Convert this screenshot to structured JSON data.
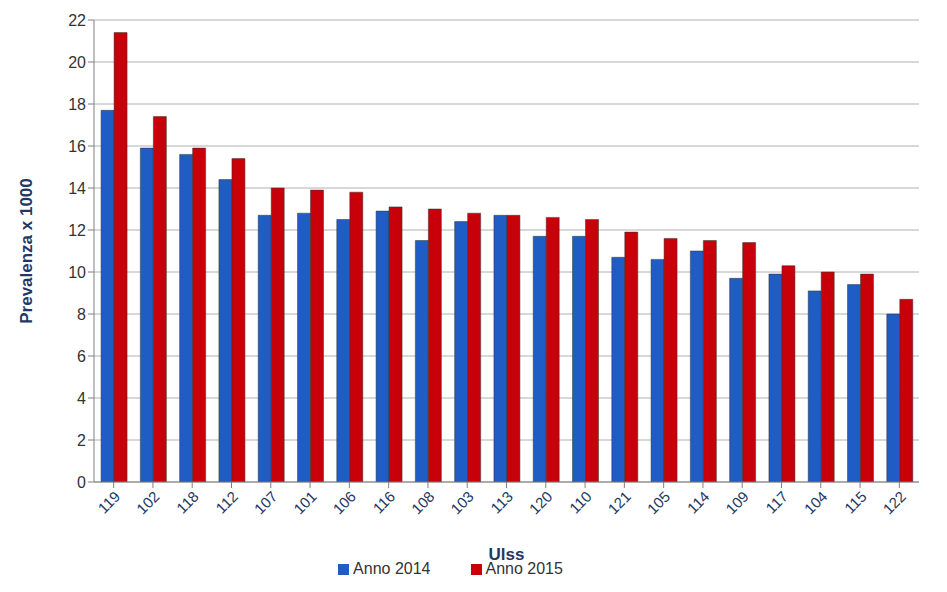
{
  "chart_data": {
    "type": "bar",
    "x_label": "Ulss",
    "y_label": "Prevalenza x 1000",
    "categories": [
      "119",
      "102",
      "118",
      "112",
      "107",
      "101",
      "106",
      "116",
      "108",
      "103",
      "113",
      "120",
      "110",
      "121",
      "105",
      "114",
      "109",
      "117",
      "104",
      "115",
      "122"
    ],
    "series": [
      {
        "name": "Anno 2014",
        "color": "#1f5cc4",
        "values": [
          17.7,
          15.9,
          15.6,
          14.4,
          12.7,
          12.8,
          12.5,
          12.9,
          11.5,
          12.4,
          12.7,
          11.7,
          11.7,
          10.7,
          10.6,
          11.0,
          9.7,
          9.9,
          9.1,
          9.4,
          8.0
        ]
      },
      {
        "name": "Anno 2015",
        "color": "#c8000a",
        "values": [
          21.4,
          17.4,
          15.9,
          15.4,
          14.0,
          13.9,
          13.8,
          13.1,
          13.0,
          12.8,
          12.7,
          12.6,
          12.5,
          11.9,
          11.6,
          11.5,
          11.4,
          10.3,
          10.0,
          9.9,
          8.7
        ]
      }
    ],
    "ylim": [
      0,
      22
    ],
    "yticks": [
      0,
      2,
      4,
      6,
      8,
      10,
      12,
      14,
      16,
      18,
      20,
      22
    ],
    "grid": true,
    "legend": "bottom"
  }
}
